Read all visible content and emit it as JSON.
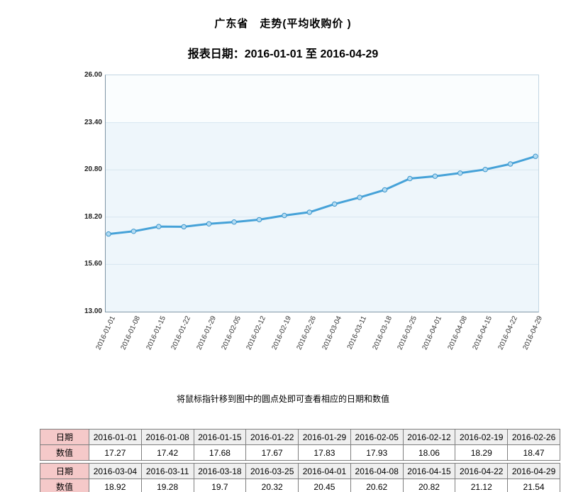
{
  "header": {
    "title": "广东省　走势(平均收购价 )",
    "subtitle": "报表日期：2016-01-01 至 2016-04-29"
  },
  "note": "将鼠标指针移到图中的圆点处即可查看相应的日期和数值",
  "chart_data": {
    "type": "line",
    "title": "广东省 走势(平均收购价)",
    "x": [
      "2016-01-01",
      "2016-01-08",
      "2016-01-15",
      "2016-01-22",
      "2016-01-29",
      "2016-02-05",
      "2016-02-12",
      "2016-02-19",
      "2016-02-26",
      "2016-03-04",
      "2016-03-11",
      "2016-03-18",
      "2016-03-25",
      "2016-04-01",
      "2016-04-08",
      "2016-04-15",
      "2016-04-22",
      "2016-04-29"
    ],
    "values": [
      17.27,
      17.42,
      17.68,
      17.67,
      17.83,
      17.93,
      18.06,
      18.29,
      18.47,
      18.92,
      19.28,
      19.7,
      20.32,
      20.45,
      20.62,
      20.82,
      21.12,
      21.54
    ],
    "ylim": [
      13.0,
      26.0
    ],
    "ytick_labels": [
      "26.00",
      "23.40",
      "20.80",
      "18.20",
      "15.60",
      "13.00"
    ],
    "grid": true,
    "legend": "none",
    "line_color": "#46a2d8",
    "marker_fill": "#b3dbf2",
    "marker_stroke": "#3d97cd",
    "plot_bg": "#eef6fb",
    "band_top": "#fafdfe",
    "grid_color": "#d7e6f0"
  },
  "tables": [
    {
      "date_label": "日期",
      "value_label": "数值",
      "dates": [
        "2016-01-01",
        "2016-01-08",
        "2016-01-15",
        "2016-01-22",
        "2016-01-29",
        "2016-02-05",
        "2016-02-12",
        "2016-02-19",
        "2016-02-26"
      ],
      "values": [
        "17.27",
        "17.42",
        "17.68",
        "17.67",
        "17.83",
        "17.93",
        "18.06",
        "18.29",
        "18.47"
      ]
    },
    {
      "date_label": "日期",
      "value_label": "数值",
      "dates": [
        "2016-03-04",
        "2016-03-11",
        "2016-03-18",
        "2016-03-25",
        "2016-04-01",
        "2016-04-08",
        "2016-04-15",
        "2016-04-22",
        "2016-04-29"
      ],
      "values": [
        "18.92",
        "19.28",
        "19.7",
        "20.32",
        "20.45",
        "20.62",
        "20.82",
        "21.12",
        "21.54"
      ]
    }
  ]
}
